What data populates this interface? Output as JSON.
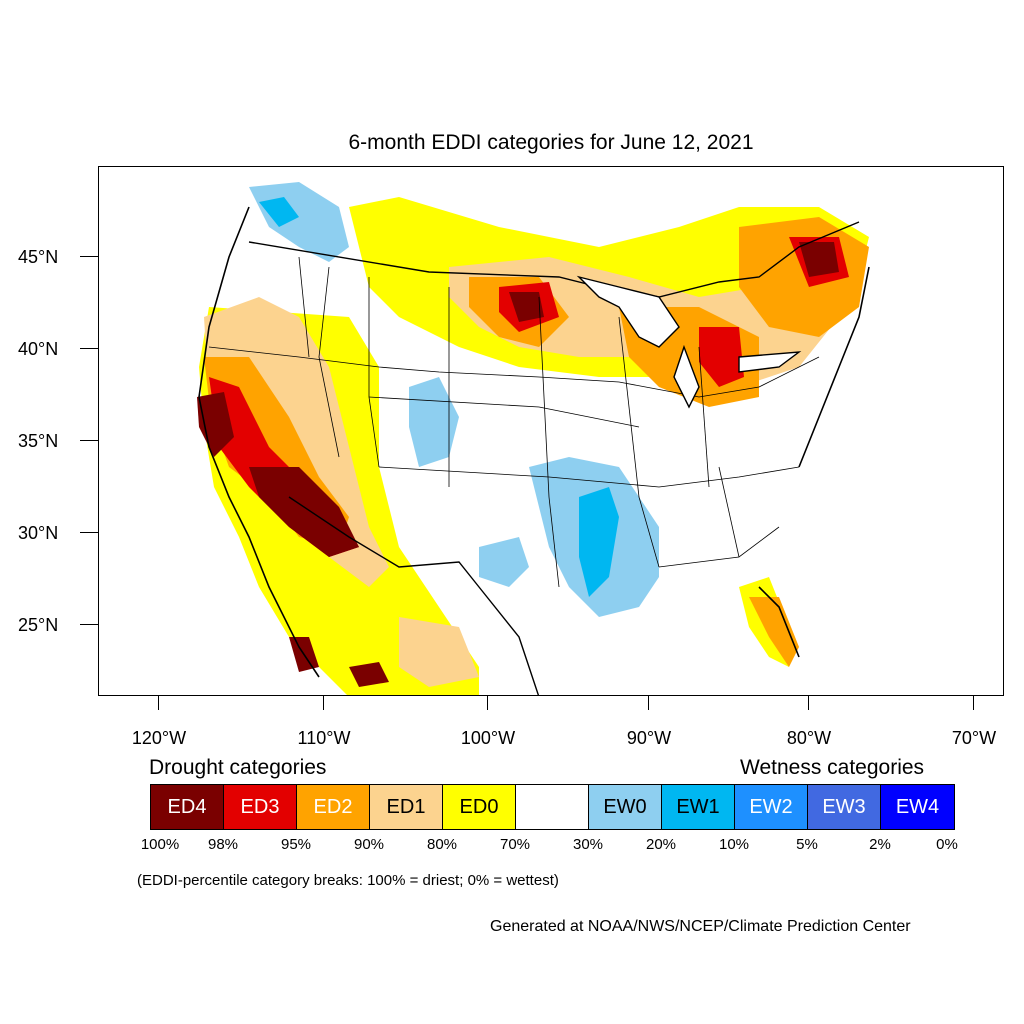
{
  "title": "6-month EDDI categories for June 12, 2021",
  "lat_labels": [
    "45°N",
    "40°N",
    "35°N",
    "30°N",
    "25°N"
  ],
  "lon_labels": [
    "120°W",
    "110°W",
    "100°W",
    "90°W",
    "80°W",
    "70°W"
  ],
  "drought_title": "Drought categories",
  "wetness_title": "Wetness categories",
  "categories": [
    {
      "label": "ED4",
      "color": "#7a0000",
      "text_color": "#ffffff"
    },
    {
      "label": "ED3",
      "color": "#e30000",
      "text_color": "#ffffff"
    },
    {
      "label": "ED2",
      "color": "#ffa300",
      "text_color": "#ffffff"
    },
    {
      "label": "ED1",
      "color": "#fcd38f",
      "text_color": "#000000"
    },
    {
      "label": "ED0",
      "color": "#ffff00",
      "text_color": "#000000"
    },
    {
      "label": "",
      "color": "#ffffff",
      "text_color": "#000000"
    },
    {
      "label": "EW0",
      "color": "#8ecff0",
      "text_color": "#000000"
    },
    {
      "label": "EW1",
      "color": "#00b7f1",
      "text_color": "#000000"
    },
    {
      "label": "EW2",
      "color": "#1e90ff",
      "text_color": "#ffffff"
    },
    {
      "label": "EW3",
      "color": "#4169e1",
      "text_color": "#ffffff"
    },
    {
      "label": "EW4",
      "color": "#0000ff",
      "text_color": "#ffffff"
    }
  ],
  "percentile_breaks": [
    "100%",
    "98%",
    "95%",
    "90%",
    "80%",
    "70%",
    "30%",
    "20%",
    "10%",
    "5%",
    "2%",
    "0%"
  ],
  "note": "(EDDI-percentile category breaks: 100% = driest; 0% = wettest)",
  "credit": "Generated at NOAA/NWS/NCEP/Climate Prediction Center"
}
